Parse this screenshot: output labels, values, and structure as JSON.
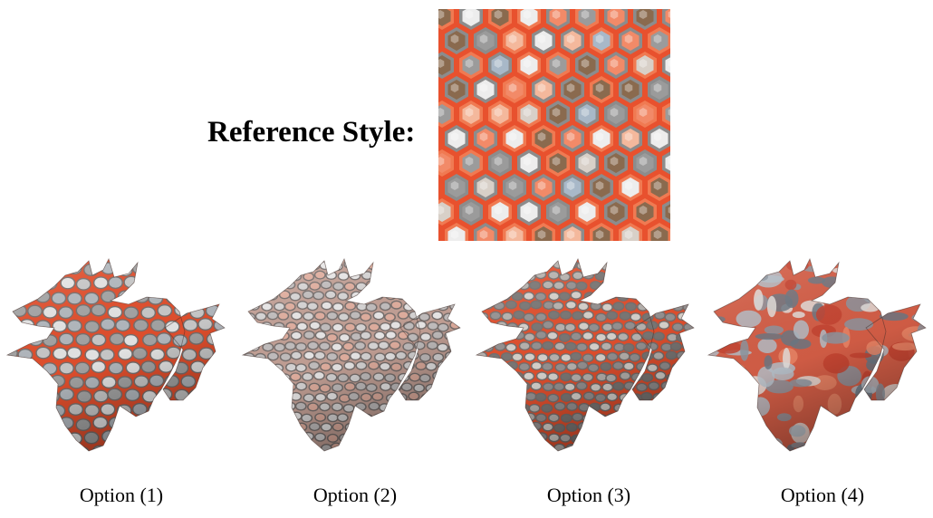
{
  "reference": {
    "label": "Reference Style:",
    "texture_name": "orange-hexagon-cell-texture"
  },
  "options": [
    {
      "label": "Option (1)",
      "style": "large-cells"
    },
    {
      "label": "Option (2)",
      "style": "pale-small-cells"
    },
    {
      "label": "Option (3)",
      "style": "dark-small-cells"
    },
    {
      "label": "Option (4)",
      "style": "blotchy-noise"
    }
  ],
  "colors": {
    "orange": "#e8512e",
    "light_orange": "#f28a68",
    "cell_gray": "#9b9b9b",
    "cell_white": "#ededed",
    "cell_blue": "#a8b8c8",
    "cell_brown": "#8a6a4e"
  }
}
